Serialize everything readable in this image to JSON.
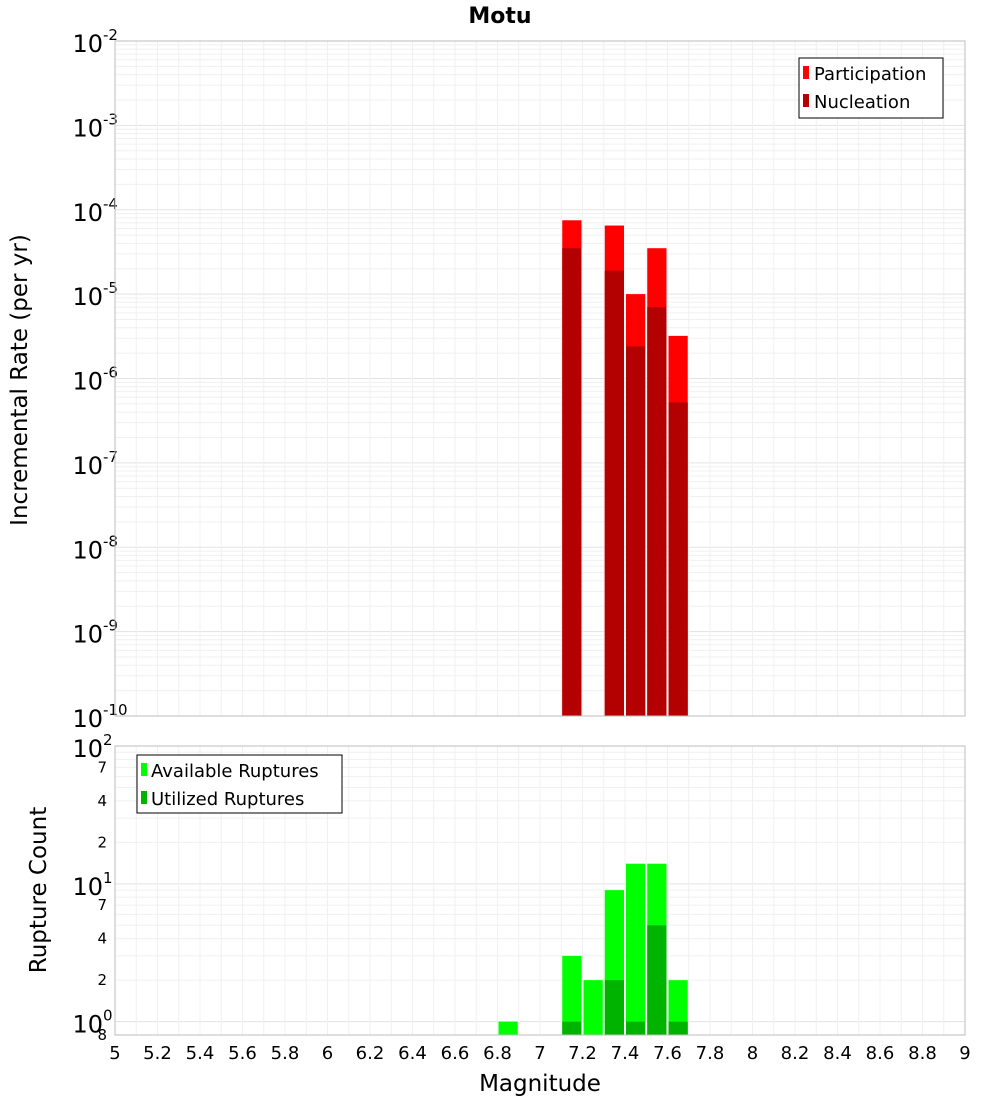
{
  "chart_data": [
    {
      "type": "bar",
      "title": "Motu",
      "xlabel": "",
      "ylabel": "Incremental Rate (per yr)",
      "yscale": "log",
      "ylim_exponents": [
        -10,
        -2
      ],
      "xlim": [
        5,
        9
      ],
      "grid": true,
      "legend_position": "top-right",
      "bar_width": 0.1,
      "series": [
        {
          "name": "Participation",
          "color": "#ff0000",
          "x": [
            7.15,
            7.35,
            7.45,
            7.55,
            7.65
          ],
          "values": [
            7.5e-05,
            6.5e-05,
            1e-05,
            3.5e-05,
            3.2e-06
          ]
        },
        {
          "name": "Nucleation",
          "color": "#b30000",
          "x": [
            7.15,
            7.35,
            7.45,
            7.55,
            7.65
          ],
          "values": [
            3.5e-05,
            1.9e-05,
            2.4e-06,
            7e-06,
            5.2e-07
          ]
        }
      ],
      "y_ticks": [
        {
          "base": "10",
          "exp": "-2"
        },
        {
          "base": "10",
          "exp": "-3"
        },
        {
          "base": "10",
          "exp": "-4"
        },
        {
          "base": "10",
          "exp": "-5"
        },
        {
          "base": "10",
          "exp": "-6"
        },
        {
          "base": "10",
          "exp": "-7"
        },
        {
          "base": "10",
          "exp": "-8"
        },
        {
          "base": "10",
          "exp": "-9"
        },
        {
          "base": "10",
          "exp": "-10"
        }
      ]
    },
    {
      "type": "bar",
      "title": "",
      "xlabel": "Magnitude",
      "ylabel": "Rupture Count",
      "yscale": "log",
      "ylim": [
        0.8,
        100
      ],
      "xlim": [
        5,
        9
      ],
      "grid": true,
      "legend_position": "top-left",
      "bar_width": 0.1,
      "series": [
        {
          "name": "Available Ruptures",
          "color": "#00ff00",
          "x": [
            6.85,
            7.15,
            7.25,
            7.35,
            7.45,
            7.55,
            7.65
          ],
          "values": [
            1,
            3,
            2,
            9,
            14,
            14,
            2
          ]
        },
        {
          "name": "Utilized Ruptures",
          "color": "#00b300",
          "x": [
            7.15,
            7.35,
            7.45,
            7.55,
            7.65
          ],
          "values": [
            1,
            2,
            1,
            5,
            1
          ]
        }
      ],
      "y_major_ticks": [
        {
          "value": 100,
          "base": "10",
          "exp": "2"
        },
        {
          "value": 10,
          "base": "10",
          "exp": "1"
        },
        {
          "value": 1,
          "base": "10",
          "exp": "0"
        }
      ],
      "y_minor_ticks": [
        {
          "value": 70,
          "label": "7"
        },
        {
          "value": 40,
          "label": "4"
        },
        {
          "value": 20,
          "label": "2"
        },
        {
          "value": 7,
          "label": "7"
        },
        {
          "value": 4,
          "label": "4"
        },
        {
          "value": 2,
          "label": "2"
        },
        {
          "value": 0.8,
          "label": "8"
        }
      ],
      "x_ticks": [
        "5",
        "5.2",
        "5.4",
        "5.6",
        "5.8",
        "6",
        "6.2",
        "6.4",
        "6.6",
        "6.8",
        "7",
        "7.2",
        "7.4",
        "7.6",
        "7.8",
        "8",
        "8.2",
        "8.4",
        "8.6",
        "8.8",
        "9"
      ]
    }
  ]
}
